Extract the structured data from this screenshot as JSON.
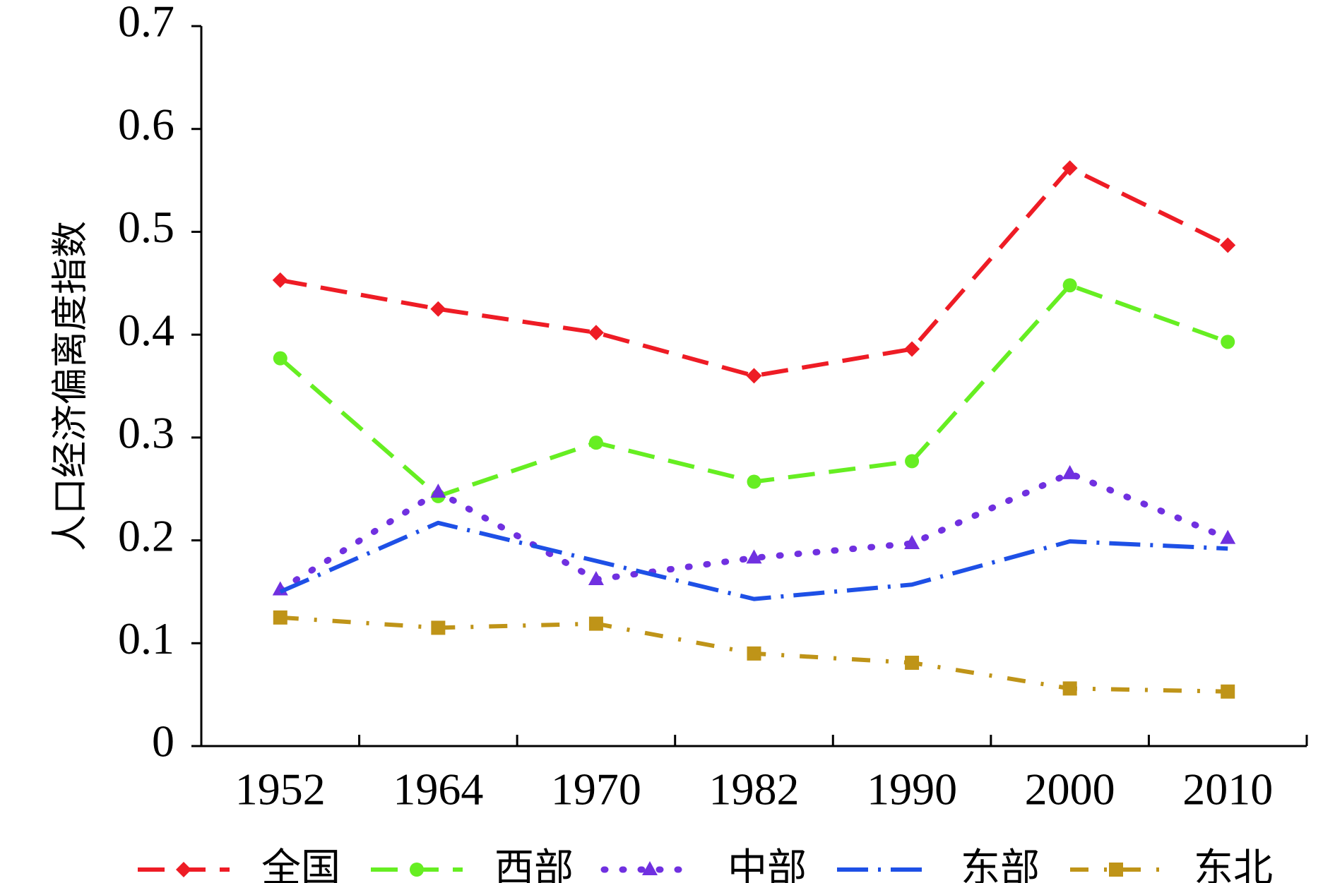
{
  "chart_data": {
    "type": "line",
    "ylabel": "人口经济偏离度指数",
    "xlabel": "",
    "ylim": [
      0,
      0.7
    ],
    "yticks": [
      "0",
      "0.1",
      "0.2",
      "0.3",
      "0.4",
      "0.5",
      "0.6",
      "0.7"
    ],
    "categories": [
      "1952",
      "1964",
      "1970",
      "1982",
      "1990",
      "2000",
      "2010"
    ],
    "legend_position": "bottom",
    "series": [
      {
        "name": "全国",
        "color": "#ee1c25",
        "marker": "diamond",
        "dash": "long-dash",
        "values": [
          0.453,
          0.425,
          0.402,
          0.36,
          0.386,
          0.562,
          0.487
        ]
      },
      {
        "name": "西部",
        "color": "#66ee22",
        "marker": "circle",
        "dash": "long-dash",
        "values": [
          0.377,
          0.243,
          0.295,
          0.257,
          0.277,
          0.448,
          0.393
        ]
      },
      {
        "name": "中部",
        "color": "#7030e0",
        "marker": "triangle",
        "dash": "dot",
        "values": [
          0.152,
          0.247,
          0.162,
          0.183,
          0.197,
          0.265,
          0.202
        ]
      },
      {
        "name": "东部",
        "color": "#1e50e6",
        "marker": "none",
        "dash": "long-dash-dot",
        "values": [
          0.15,
          0.217,
          0.18,
          0.143,
          0.157,
          0.199,
          0.192
        ]
      },
      {
        "name": "东北",
        "color": "#bf9418",
        "marker": "square",
        "dash": "dash-dot",
        "values": [
          0.125,
          0.115,
          0.119,
          0.09,
          0.081,
          0.056,
          0.053
        ]
      }
    ]
  }
}
